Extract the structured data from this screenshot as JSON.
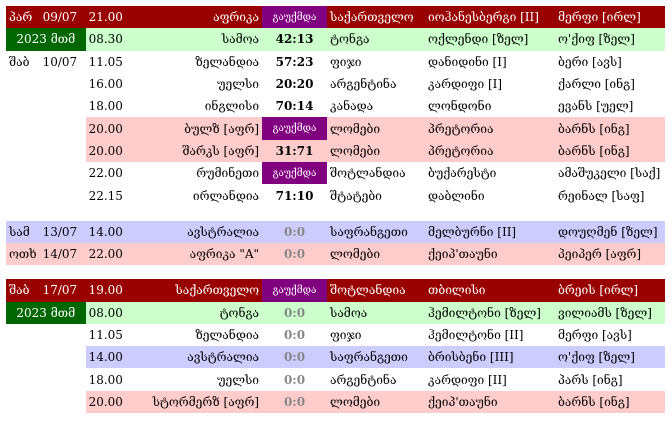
{
  "rows": [
    {
      "kind": "head",
      "day": "პარ",
      "date": "09/07",
      "time": "21.00",
      "home": "აფრიკა",
      "score": "გაუქმდა",
      "away": "საქართველო",
      "venue": "იოჰანესბერგი [II]",
      "ref": "მერფი [ირლ]"
    },
    {
      "kind": "green",
      "year": "2023 მთმ",
      "time": "08.30",
      "home": "სამოა",
      "score": "42:13",
      "away": "ტონგა",
      "venue": "ოქლენდი [ზელ]",
      "ref": "ო'ქიფ [ზელ]"
    },
    {
      "kind": "plain",
      "day": "შაბ",
      "date": "10/07",
      "time": "11.05",
      "home": "ზელანდია",
      "score": "57:23",
      "away": "ფიჯი",
      "venue": "დანიდინი [I]",
      "ref": "ბერი [ავს]"
    },
    {
      "kind": "plain",
      "time": "16.00",
      "home": "უელსი",
      "score": "20:20",
      "away": "არგენტინა",
      "venue": "კარდიფი [I]",
      "ref": "ქარლი [ინგ]"
    },
    {
      "kind": "plain",
      "time": "18.00",
      "home": "ინგლისი",
      "score": "70:14",
      "away": "კანადა",
      "venue": "ლონდონი",
      "ref": "ევანს [უელ]"
    },
    {
      "kind": "pink",
      "time": "20.00",
      "home": "ბულზ [აფრ]",
      "score": "გაუქმდა",
      "away": "ლომები",
      "venue": "პრეტორია",
      "ref": "ბარნს [ინგ]"
    },
    {
      "kind": "pink",
      "time": "20.00",
      "home": "შარკს [აფრ]",
      "score": "31:71",
      "away": "ლომები",
      "venue": "პრეტორია",
      "ref": "ბარნს [ინგ]"
    },
    {
      "kind": "plain",
      "time": "22.00",
      "home": "რუმინეთი",
      "score": "გაუქმდა",
      "away": "შოტლანდია",
      "venue": "ბუქარესტი",
      "ref": "ამაშუკელი [საქ]"
    },
    {
      "kind": "plain",
      "time": "22.15",
      "home": "ირლანდია",
      "score": "71:10",
      "away": "შტატები",
      "venue": "დაბლინი",
      "ref": "რეინალ [საფ]"
    },
    {
      "kind": "spacer"
    },
    {
      "kind": "blue",
      "day": "სამ",
      "date": "13/07",
      "time": "14.00",
      "home": "ავსტრალია",
      "score": "0:0",
      "away": "საფრანგეთი",
      "venue": "მელბურნი [II]",
      "ref": "დოუღმენ [ზელ]"
    },
    {
      "kind": "pink",
      "day": "ოთხ",
      "date": "14/07",
      "time": "22.00",
      "home": "აფრიკა \"A\"",
      "score": "0:0",
      "away": "ლომები",
      "venue": "ქეიპ'თაუნი",
      "ref": "პეიპერ [აფრ]"
    },
    {
      "kind": "spacer"
    },
    {
      "kind": "head",
      "day": "შაბ",
      "date": "17/07",
      "time": "19.00",
      "home": "საქართველო",
      "score": "გაუქმდა",
      "away": "შოტლანდია",
      "venue": "თბილისი",
      "ref": "ბრეის [ირლ]"
    },
    {
      "kind": "green",
      "year": "2023 მთმ",
      "time": "08.00",
      "home": "ტონგა",
      "score": "0:0",
      "away": "სამოა",
      "venue": "ჰემილტონი [ზელ]",
      "ref": "ვილიამს [ზელ]"
    },
    {
      "kind": "plain",
      "time": "11.05",
      "home": "ზელანდია",
      "score": "0:0",
      "away": "ფიჯი",
      "venue": "ჰემილტონი [II]",
      "ref": "მერფი [ავს]"
    },
    {
      "kind": "blue",
      "time": "14.00",
      "home": "ავსტრალია",
      "score": "0:0",
      "away": "საფრანგეთი",
      "venue": "ბრისბენი [III]",
      "ref": "ო'ქიფ [ზელ]"
    },
    {
      "kind": "plain",
      "time": "18.00",
      "home": "უელსი",
      "score": "0:0",
      "away": "არგენტინა",
      "venue": "კარდიფი [II]",
      "ref": "პარს [ინგ]"
    },
    {
      "kind": "pink",
      "time": "20.00",
      "home": "სტორმერზ [აფრ]",
      "score": "0:0",
      "away": "ლომები",
      "venue": "ქეიპ'თაუნი",
      "ref": "ბარნს [ინგ]"
    }
  ]
}
